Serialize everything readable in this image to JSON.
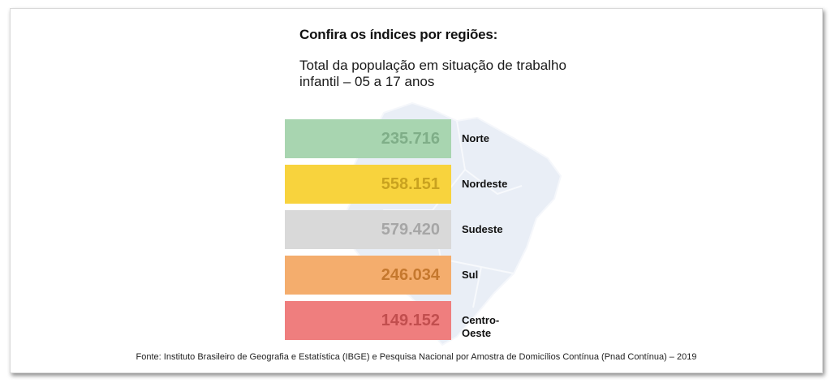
{
  "header": {
    "title": "Confira os índices por regiões:",
    "subtitle": "Total da população em situação de trabalho infantil – 05 a 17 anos"
  },
  "chart_data": {
    "type": "bar",
    "categories": [
      "Norte",
      "Nordeste",
      "Sudeste",
      "Sul",
      "Centro-Oeste"
    ],
    "series": [
      {
        "values": [
          235716,
          558151,
          579420,
          246034,
          149152
        ]
      }
    ],
    "value_labels": [
      "235.716",
      "558.151",
      "579.420",
      "246.034",
      "149.152"
    ],
    "bar_colors": [
      "#a8d5b0",
      "#f8d33d",
      "#d9d9d9",
      "#f4ad6d",
      "#ef7e7e"
    ],
    "label_colors": [
      "#7fae88",
      "#c9a21f",
      "#a6a6a6",
      "#c5782e",
      "#c14e4e"
    ],
    "title": "",
    "xlabel": "",
    "ylabel": "",
    "legend": "none",
    "grid": false
  },
  "footer": {
    "source": "Fonte: Instituto Brasileiro de Geografia e Estatística (IBGE) e Pesquisa Nacional por Amostra de Domicílios Contínua (Pnad Contínua) – 2019"
  }
}
